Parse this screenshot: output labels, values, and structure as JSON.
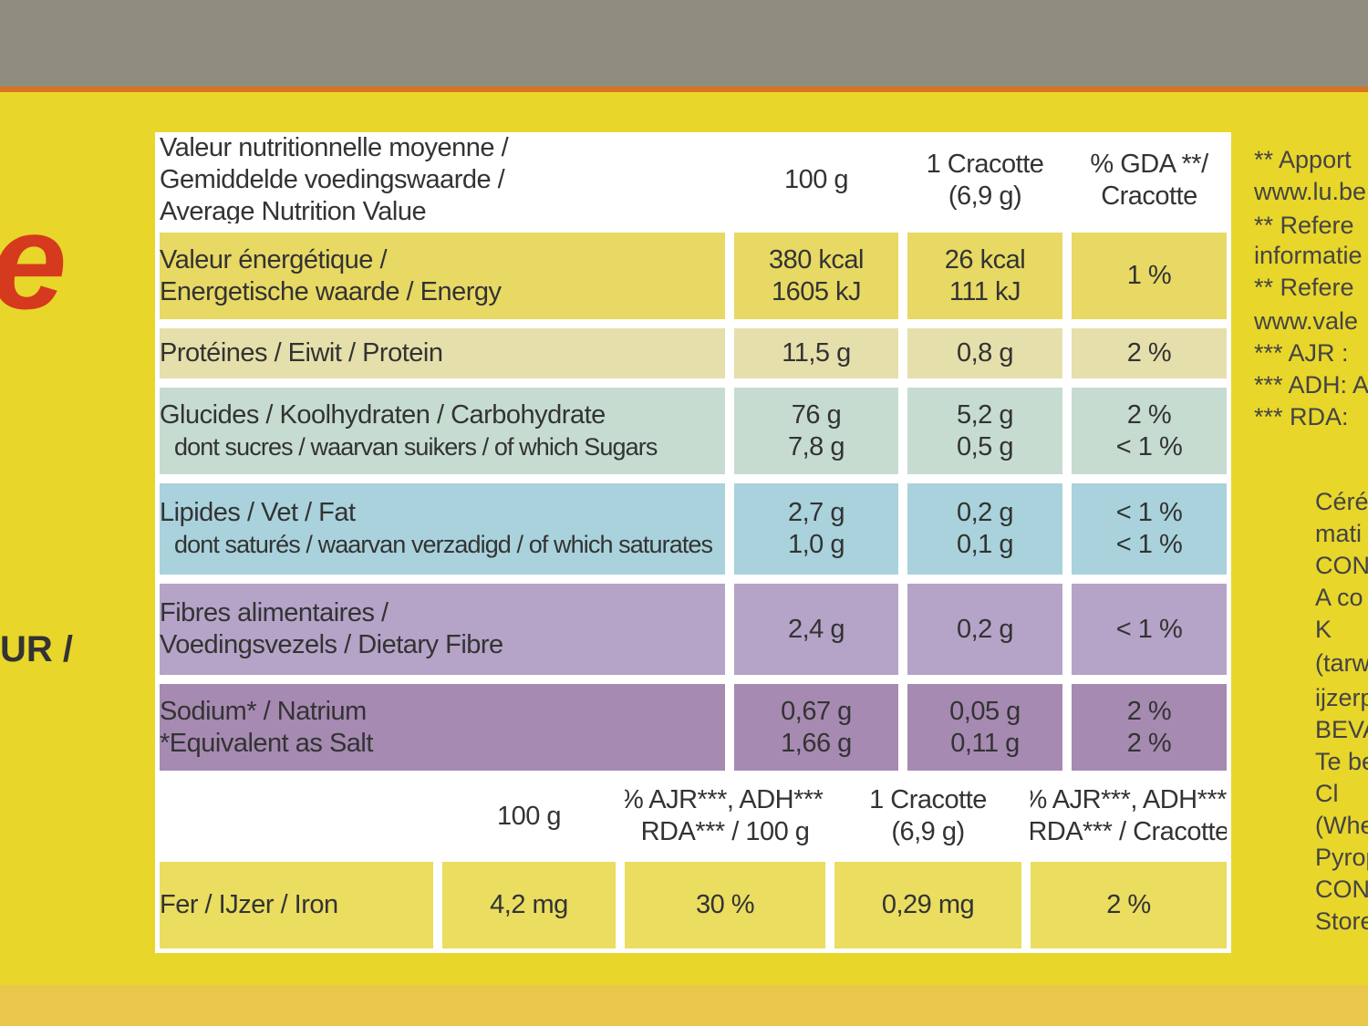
{
  "brand_fragment": "e",
  "side_left_text": "UR /",
  "nutrition_table": {
    "header": [
      [
        "Valeur nutritionnelle moyenne /",
        "Gemiddelde voedingswaarde /",
        "Average Nutrition Value"
      ],
      [
        "100 g"
      ],
      [
        "1 Cracotte",
        "(6,9 g)"
      ],
      [
        "% GDA **/",
        "Cracotte"
      ]
    ],
    "rows": [
      [
        [
          "Valeur énergétique /",
          "Energetische waarde / Energy"
        ],
        [
          "380 kcal",
          "1605 kJ"
        ],
        [
          "26 kcal",
          "111 kJ"
        ],
        [
          "1 %"
        ]
      ],
      [
        [
          "Protéines / Eiwit / Protein"
        ],
        [
          "11,5 g"
        ],
        [
          "0,8 g"
        ],
        [
          "2 %"
        ]
      ],
      [
        [
          "Glucides / Koolhydraten / Carbohydrate",
          "dont sucres / waarvan suikers / of which Sugars"
        ],
        [
          "76 g",
          "7,8 g"
        ],
        [
          "5,2 g",
          "0,5 g"
        ],
        [
          "2 %",
          "< 1 %"
        ]
      ],
      [
        [
          "Lipides / Vet / Fat",
          "dont saturés / waarvan verzadigd / of which saturates"
        ],
        [
          "2,7 g",
          "1,0 g"
        ],
        [
          "0,2 g",
          "0,1 g"
        ],
        [
          "< 1 %",
          "< 1 %"
        ]
      ],
      [
        [
          "Fibres alimentaires /",
          "Voedingsvezels / Dietary Fibre"
        ],
        [
          "2,4 g"
        ],
        [
          "0,2 g"
        ],
        [
          "< 1 %"
        ]
      ],
      [
        [
          "Sodium* / Natrium",
          "*Equivalent as Salt"
        ],
        [
          "0,67 g",
          "1,66 g"
        ],
        [
          "0,05 g",
          "0,11 g"
        ],
        [
          "2 %",
          "2 %"
        ]
      ]
    ]
  },
  "iron_table": {
    "header": [
      [
        "100 g"
      ],
      [
        "% AJR***, ADH***,",
        "RDA*** / 100 g"
      ],
      [
        "1 Cracotte",
        "(6,9 g)"
      ],
      [
        "% AJR***, ADH***,",
        "RDA*** / Cracotte"
      ]
    ],
    "row": [
      [
        "Fer / IJzer / Iron"
      ],
      [
        "4,2 mg"
      ],
      [
        "30 %"
      ],
      [
        "0,29 mg"
      ],
      [
        "2 %"
      ]
    ]
  },
  "side_notes": [
    "** Apport",
    "www.lu.be",
    "** Refere",
    "informatie",
    "** Refere",
    "www.vale",
    "*** AJR :",
    "*** ADH: A",
    "*** RDA: ",
    "Céré",
    "mati",
    "CON",
    "A co",
    "K",
    "(tarw",
    "ijzerp",
    "BEVA",
    "Te be",
    "Cl",
    "(Whe",
    "Pyrop",
    "CONT",
    "Store"
  ]
}
